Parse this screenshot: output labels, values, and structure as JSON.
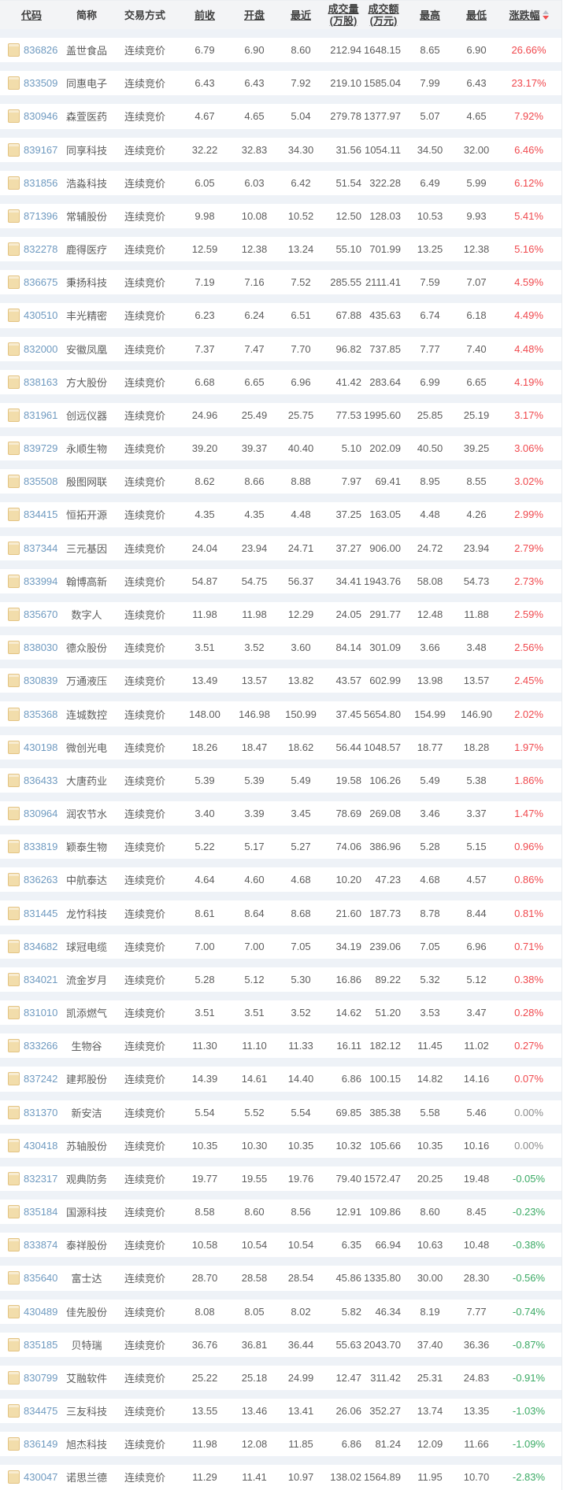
{
  "table": {
    "columns": [
      {
        "key": "code",
        "label": "代码",
        "underline": true
      },
      {
        "key": "name",
        "label": "简称",
        "underline": false
      },
      {
        "key": "method",
        "label": "交易方式",
        "underline": false
      },
      {
        "key": "prev_close",
        "label": "前收",
        "underline": true
      },
      {
        "key": "open",
        "label": "开盘",
        "underline": true
      },
      {
        "key": "last",
        "label": "最近",
        "underline": true
      },
      {
        "key": "volume",
        "label": "成交量",
        "label2": "(万股)",
        "underline": true
      },
      {
        "key": "amount",
        "label": "成交额",
        "label2": "(万元)",
        "underline": true
      },
      {
        "key": "high",
        "label": "最高",
        "underline": true
      },
      {
        "key": "low",
        "label": "最低",
        "underline": true
      },
      {
        "key": "change",
        "label": "涨跌幅",
        "underline": true,
        "sort_indicator": "desc"
      }
    ],
    "rows": [
      {
        "code": "836826",
        "name": "盖世食品",
        "method": "连续竞价",
        "prev_close": "6.79",
        "open": "6.90",
        "last": "8.60",
        "volume": "212.94",
        "amount": "1648.15",
        "high": "8.65",
        "low": "6.90",
        "change": "26.66%"
      },
      {
        "code": "833509",
        "name": "同惠电子",
        "method": "连续竞价",
        "prev_close": "6.43",
        "open": "6.43",
        "last": "7.92",
        "volume": "219.10",
        "amount": "1585.04",
        "high": "7.99",
        "low": "6.43",
        "change": "23.17%"
      },
      {
        "code": "830946",
        "name": "森萱医药",
        "method": "连续竞价",
        "prev_close": "4.67",
        "open": "4.65",
        "last": "5.04",
        "volume": "279.78",
        "amount": "1377.97",
        "high": "5.07",
        "low": "4.65",
        "change": "7.92%"
      },
      {
        "code": "839167",
        "name": "同享科技",
        "method": "连续竞价",
        "prev_close": "32.22",
        "open": "32.83",
        "last": "34.30",
        "volume": "31.56",
        "amount": "1054.11",
        "high": "34.50",
        "low": "32.00",
        "change": "6.46%"
      },
      {
        "code": "831856",
        "name": "浩淼科技",
        "method": "连续竞价",
        "prev_close": "6.05",
        "open": "6.03",
        "last": "6.42",
        "volume": "51.54",
        "amount": "322.28",
        "high": "6.49",
        "low": "5.99",
        "change": "6.12%"
      },
      {
        "code": "871396",
        "name": "常辅股份",
        "method": "连续竞价",
        "prev_close": "9.98",
        "open": "10.08",
        "last": "10.52",
        "volume": "12.50",
        "amount": "128.03",
        "high": "10.53",
        "low": "9.93",
        "change": "5.41%"
      },
      {
        "code": "832278",
        "name": "鹿得医疗",
        "method": "连续竞价",
        "prev_close": "12.59",
        "open": "12.38",
        "last": "13.24",
        "volume": "55.10",
        "amount": "701.99",
        "high": "13.25",
        "low": "12.38",
        "change": "5.16%"
      },
      {
        "code": "836675",
        "name": "秉扬科技",
        "method": "连续竞价",
        "prev_close": "7.19",
        "open": "7.16",
        "last": "7.52",
        "volume": "285.55",
        "amount": "2111.41",
        "high": "7.59",
        "low": "7.07",
        "change": "4.59%"
      },
      {
        "code": "430510",
        "name": "丰光精密",
        "method": "连续竞价",
        "prev_close": "6.23",
        "open": "6.24",
        "last": "6.51",
        "volume": "67.88",
        "amount": "435.63",
        "high": "6.74",
        "low": "6.18",
        "change": "4.49%"
      },
      {
        "code": "832000",
        "name": "安徽凤凰",
        "method": "连续竞价",
        "prev_close": "7.37",
        "open": "7.47",
        "last": "7.70",
        "volume": "96.82",
        "amount": "737.85",
        "high": "7.77",
        "low": "7.40",
        "change": "4.48%"
      },
      {
        "code": "838163",
        "name": "方大股份",
        "method": "连续竞价",
        "prev_close": "6.68",
        "open": "6.65",
        "last": "6.96",
        "volume": "41.42",
        "amount": "283.64",
        "high": "6.99",
        "low": "6.65",
        "change": "4.19%"
      },
      {
        "code": "831961",
        "name": "创远仪器",
        "method": "连续竞价",
        "prev_close": "24.96",
        "open": "25.49",
        "last": "25.75",
        "volume": "77.53",
        "amount": "1995.60",
        "high": "25.85",
        "low": "25.19",
        "change": "3.17%"
      },
      {
        "code": "839729",
        "name": "永顺生物",
        "method": "连续竞价",
        "prev_close": "39.20",
        "open": "39.37",
        "last": "40.40",
        "volume": "5.10",
        "amount": "202.09",
        "high": "40.50",
        "low": "39.25",
        "change": "3.06%"
      },
      {
        "code": "835508",
        "name": "殷图网联",
        "method": "连续竞价",
        "prev_close": "8.62",
        "open": "8.66",
        "last": "8.88",
        "volume": "7.97",
        "amount": "69.41",
        "high": "8.95",
        "low": "8.55",
        "change": "3.02%"
      },
      {
        "code": "834415",
        "name": "恒拓开源",
        "method": "连续竞价",
        "prev_close": "4.35",
        "open": "4.35",
        "last": "4.48",
        "volume": "37.25",
        "amount": "163.05",
        "high": "4.48",
        "low": "4.26",
        "change": "2.99%"
      },
      {
        "code": "837344",
        "name": "三元基因",
        "method": "连续竞价",
        "prev_close": "24.04",
        "open": "23.94",
        "last": "24.71",
        "volume": "37.27",
        "amount": "906.00",
        "high": "24.72",
        "low": "23.94",
        "change": "2.79%"
      },
      {
        "code": "833994",
        "name": "翰博高新",
        "method": "连续竞价",
        "prev_close": "54.87",
        "open": "54.75",
        "last": "56.37",
        "volume": "34.41",
        "amount": "1943.76",
        "high": "58.08",
        "low": "54.73",
        "change": "2.73%"
      },
      {
        "code": "835670",
        "name": "数字人",
        "method": "连续竞价",
        "prev_close": "11.98",
        "open": "11.98",
        "last": "12.29",
        "volume": "24.05",
        "amount": "291.77",
        "high": "12.48",
        "low": "11.88",
        "change": "2.59%"
      },
      {
        "code": "838030",
        "name": "德众股份",
        "method": "连续竞价",
        "prev_close": "3.51",
        "open": "3.52",
        "last": "3.60",
        "volume": "84.14",
        "amount": "301.09",
        "high": "3.66",
        "low": "3.48",
        "change": "2.56%"
      },
      {
        "code": "830839",
        "name": "万通液压",
        "method": "连续竞价",
        "prev_close": "13.49",
        "open": "13.57",
        "last": "13.82",
        "volume": "43.57",
        "amount": "602.99",
        "high": "13.98",
        "low": "13.57",
        "change": "2.45%"
      },
      {
        "code": "835368",
        "name": "连城数控",
        "method": "连续竞价",
        "prev_close": "148.00",
        "open": "146.98",
        "last": "150.99",
        "volume": "37.45",
        "amount": "5654.80",
        "high": "154.99",
        "low": "146.90",
        "change": "2.02%"
      },
      {
        "code": "430198",
        "name": "微创光电",
        "method": "连续竞价",
        "prev_close": "18.26",
        "open": "18.47",
        "last": "18.62",
        "volume": "56.44",
        "amount": "1048.57",
        "high": "18.77",
        "low": "18.28",
        "change": "1.97%"
      },
      {
        "code": "836433",
        "name": "大唐药业",
        "method": "连续竞价",
        "prev_close": "5.39",
        "open": "5.39",
        "last": "5.49",
        "volume": "19.58",
        "amount": "106.26",
        "high": "5.49",
        "low": "5.38",
        "change": "1.86%"
      },
      {
        "code": "830964",
        "name": "润农节水",
        "method": "连续竞价",
        "prev_close": "3.40",
        "open": "3.39",
        "last": "3.45",
        "volume": "78.69",
        "amount": "269.08",
        "high": "3.46",
        "low": "3.37",
        "change": "1.47%"
      },
      {
        "code": "833819",
        "name": "颖泰生物",
        "method": "连续竞价",
        "prev_close": "5.22",
        "open": "5.17",
        "last": "5.27",
        "volume": "74.06",
        "amount": "386.96",
        "high": "5.28",
        "low": "5.15",
        "change": "0.96%"
      },
      {
        "code": "836263",
        "name": "中航泰达",
        "method": "连续竞价",
        "prev_close": "4.64",
        "open": "4.60",
        "last": "4.68",
        "volume": "10.20",
        "amount": "47.23",
        "high": "4.68",
        "low": "4.57",
        "change": "0.86%"
      },
      {
        "code": "831445",
        "name": "龙竹科技",
        "method": "连续竞价",
        "prev_close": "8.61",
        "open": "8.64",
        "last": "8.68",
        "volume": "21.60",
        "amount": "187.73",
        "high": "8.78",
        "low": "8.44",
        "change": "0.81%"
      },
      {
        "code": "834682",
        "name": "球冠电缆",
        "method": "连续竞价",
        "prev_close": "7.00",
        "open": "7.00",
        "last": "7.05",
        "volume": "34.19",
        "amount": "239.06",
        "high": "7.05",
        "low": "6.96",
        "change": "0.71%"
      },
      {
        "code": "834021",
        "name": "流金岁月",
        "method": "连续竞价",
        "prev_close": "5.28",
        "open": "5.12",
        "last": "5.30",
        "volume": "16.86",
        "amount": "89.22",
        "high": "5.32",
        "low": "5.12",
        "change": "0.38%"
      },
      {
        "code": "831010",
        "name": "凯添燃气",
        "method": "连续竞价",
        "prev_close": "3.51",
        "open": "3.51",
        "last": "3.52",
        "volume": "14.62",
        "amount": "51.20",
        "high": "3.53",
        "low": "3.47",
        "change": "0.28%"
      },
      {
        "code": "833266",
        "name": "生物谷",
        "method": "连续竞价",
        "prev_close": "11.30",
        "open": "11.10",
        "last": "11.33",
        "volume": "16.11",
        "amount": "182.12",
        "high": "11.45",
        "low": "11.02",
        "change": "0.27%"
      },
      {
        "code": "837242",
        "name": "建邦股份",
        "method": "连续竞价",
        "prev_close": "14.39",
        "open": "14.61",
        "last": "14.40",
        "volume": "6.86",
        "amount": "100.15",
        "high": "14.82",
        "low": "14.16",
        "change": "0.07%"
      },
      {
        "code": "831370",
        "name": "新安洁",
        "method": "连续竞价",
        "prev_close": "5.54",
        "open": "5.52",
        "last": "5.54",
        "volume": "69.85",
        "amount": "385.38",
        "high": "5.58",
        "low": "5.46",
        "change": "0.00%"
      },
      {
        "code": "430418",
        "name": "苏轴股份",
        "method": "连续竞价",
        "prev_close": "10.35",
        "open": "10.30",
        "last": "10.35",
        "volume": "10.32",
        "amount": "105.66",
        "high": "10.35",
        "low": "10.16",
        "change": "0.00%"
      },
      {
        "code": "832317",
        "name": "观典防务",
        "method": "连续竞价",
        "prev_close": "19.77",
        "open": "19.55",
        "last": "19.76",
        "volume": "79.40",
        "amount": "1572.47",
        "high": "20.25",
        "low": "19.48",
        "change": "-0.05%"
      },
      {
        "code": "835184",
        "name": "国源科技",
        "method": "连续竞价",
        "prev_close": "8.58",
        "open": "8.60",
        "last": "8.56",
        "volume": "12.91",
        "amount": "109.86",
        "high": "8.60",
        "low": "8.45",
        "change": "-0.23%"
      },
      {
        "code": "833874",
        "name": "泰祥股份",
        "method": "连续竞价",
        "prev_close": "10.58",
        "open": "10.54",
        "last": "10.54",
        "volume": "6.35",
        "amount": "66.94",
        "high": "10.63",
        "low": "10.48",
        "change": "-0.38%"
      },
      {
        "code": "835640",
        "name": "富士达",
        "method": "连续竞价",
        "prev_close": "28.70",
        "open": "28.58",
        "last": "28.54",
        "volume": "45.86",
        "amount": "1335.80",
        "high": "30.00",
        "low": "28.30",
        "change": "-0.56%"
      },
      {
        "code": "430489",
        "name": "佳先股份",
        "method": "连续竞价",
        "prev_close": "8.08",
        "open": "8.05",
        "last": "8.02",
        "volume": "5.82",
        "amount": "46.34",
        "high": "8.19",
        "low": "7.77",
        "change": "-0.74%"
      },
      {
        "code": "835185",
        "name": "贝特瑞",
        "method": "连续竞价",
        "prev_close": "36.76",
        "open": "36.81",
        "last": "36.44",
        "volume": "55.63",
        "amount": "2043.70",
        "high": "37.40",
        "low": "36.36",
        "change": "-0.87%"
      },
      {
        "code": "830799",
        "name": "艾融软件",
        "method": "连续竞价",
        "prev_close": "25.22",
        "open": "25.18",
        "last": "24.99",
        "volume": "12.47",
        "amount": "311.42",
        "high": "25.31",
        "low": "24.83",
        "change": "-0.91%"
      },
      {
        "code": "834475",
        "name": "三友科技",
        "method": "连续竞价",
        "prev_close": "13.55",
        "open": "13.46",
        "last": "13.41",
        "volume": "26.06",
        "amount": "352.27",
        "high": "13.74",
        "low": "13.35",
        "change": "-1.03%"
      },
      {
        "code": "836149",
        "name": "旭杰科技",
        "method": "连续竞价",
        "prev_close": "11.98",
        "open": "12.08",
        "last": "11.85",
        "volume": "6.86",
        "amount": "81.24",
        "high": "12.09",
        "low": "11.66",
        "change": "-1.09%"
      },
      {
        "code": "430047",
        "name": "诺思兰德",
        "method": "连续竞价",
        "prev_close": "11.29",
        "open": "11.41",
        "last": "10.97",
        "volume": "138.02",
        "amount": "1564.89",
        "high": "11.95",
        "low": "10.70",
        "change": "-2.83%"
      }
    ]
  },
  "colors": {
    "up": "#f0484d",
    "down": "#3aaa64",
    "flat": "#8c8c8c",
    "code_link": "#6f9ac0"
  },
  "icons": {
    "row_icon": "document-icon",
    "sort_icon": "sort-arrows-icon"
  }
}
